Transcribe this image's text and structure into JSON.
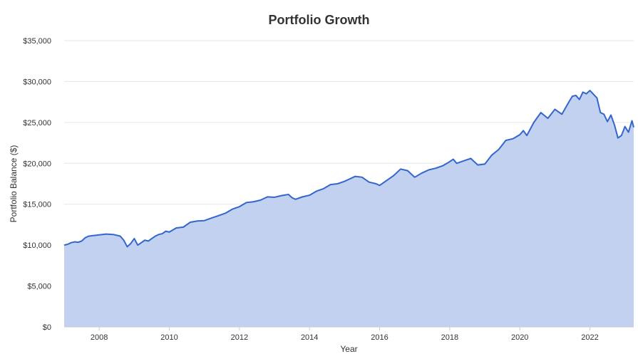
{
  "chart_data": {
    "type": "area",
    "title": "Portfolio Growth",
    "xlabel": "Year",
    "ylabel": "Portfolio Balance ($)",
    "xlim": [
      2007.0,
      2023.25
    ],
    "ylim": [
      0,
      35000
    ],
    "y_ticks": [
      {
        "value": 0,
        "label": "$0"
      },
      {
        "value": 5000,
        "label": "$5,000"
      },
      {
        "value": 10000,
        "label": "$10,000"
      },
      {
        "value": 15000,
        "label": "$15,000"
      },
      {
        "value": 20000,
        "label": "$20,000"
      },
      {
        "value": 25000,
        "label": "$25,000"
      },
      {
        "value": 30000,
        "label": "$30,000"
      },
      {
        "value": 35000,
        "label": "$35,000"
      }
    ],
    "x_ticks": [
      {
        "value": 2008,
        "label": "2008"
      },
      {
        "value": 2010,
        "label": "2010"
      },
      {
        "value": 2012,
        "label": "2012"
      },
      {
        "value": 2014,
        "label": "2014"
      },
      {
        "value": 2016,
        "label": "2016"
      },
      {
        "value": 2018,
        "label": "2018"
      },
      {
        "value": 2020,
        "label": "2020"
      },
      {
        "value": 2022,
        "label": "2022"
      }
    ],
    "grid": true,
    "colors": {
      "line": "#3366cc",
      "fill": "#c2d1f0",
      "grid": "#e6e6e6",
      "axis": "#cccccc"
    },
    "series": [
      {
        "x": [
          2007.0,
          2007.1,
          2007.2,
          2007.3,
          2007.4,
          2007.5,
          2007.6,
          2007.7,
          2007.8,
          2007.9,
          2008.0,
          2008.2,
          2008.4,
          2008.6,
          2008.7,
          2008.8,
          2008.9,
          2009.0,
          2009.1,
          2009.2,
          2009.3,
          2009.4,
          2009.5,
          2009.6,
          2009.7,
          2009.8,
          2009.9,
          2010.0,
          2010.2,
          2010.4,
          2010.6,
          2010.8,
          2011.0,
          2011.2,
          2011.4,
          2011.6,
          2011.8,
          2012.0,
          2012.2,
          2012.4,
          2012.6,
          2012.8,
          2013.0,
          2013.2,
          2013.4,
          2013.5,
          2013.6,
          2013.8,
          2014.0,
          2014.2,
          2014.4,
          2014.6,
          2014.8,
          2015.0,
          2015.1,
          2015.3,
          2015.5,
          2015.7,
          2015.9,
          2016.0,
          2016.2,
          2016.4,
          2016.6,
          2016.8,
          2017.0,
          2017.2,
          2017.4,
          2017.6,
          2017.8,
          2018.0,
          2018.1,
          2018.2,
          2018.4,
          2018.6,
          2018.8,
          2019.0,
          2019.2,
          2019.4,
          2019.6,
          2019.8,
          2020.0,
          2020.1,
          2020.2,
          2020.4,
          2020.6,
          2020.8,
          2021.0,
          2021.2,
          2021.4,
          2021.5,
          2021.6,
          2021.7,
          2021.8,
          2021.9,
          2022.0,
          2022.2,
          2022.3,
          2022.4,
          2022.5,
          2022.6,
          2022.7,
          2022.8,
          2022.9,
          2023.0,
          2023.1,
          2023.2,
          2023.25
        ],
        "values": [
          10000,
          10100,
          10300,
          10400,
          10350,
          10500,
          10900,
          11100,
          11150,
          11200,
          11250,
          11350,
          11300,
          11100,
          10600,
          9800,
          10200,
          10800,
          10000,
          10300,
          10600,
          10500,
          10800,
          11100,
          11300,
          11400,
          11700,
          11600,
          12100,
          12200,
          12800,
          12950,
          13000,
          13300,
          13600,
          13900,
          14400,
          14700,
          15200,
          15300,
          15500,
          15900,
          15850,
          16050,
          16200,
          15800,
          15600,
          15900,
          16100,
          16600,
          16900,
          17400,
          17500,
          17800,
          18000,
          18400,
          18300,
          17700,
          17500,
          17300,
          17900,
          18500,
          19300,
          19100,
          18300,
          18800,
          19200,
          19400,
          19700,
          20200,
          20500,
          20000,
          20300,
          20600,
          19800,
          19900,
          21000,
          21700,
          22800,
          23000,
          23500,
          24000,
          23400,
          25000,
          26200,
          25500,
          26600,
          26000,
          27500,
          28200,
          28300,
          27800,
          28700,
          28500,
          28900,
          28000,
          26200,
          26000,
          25100,
          25900,
          24700,
          23100,
          23400,
          24500,
          23800,
          25200,
          24400
        ]
      }
    ]
  }
}
